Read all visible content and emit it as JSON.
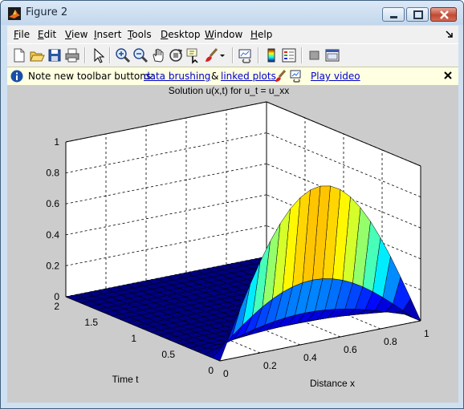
{
  "window": {
    "title": "Figure 2"
  },
  "menubar": {
    "items": [
      {
        "key": "F",
        "rest": "ile"
      },
      {
        "key": "E",
        "rest": "dit"
      },
      {
        "key": "V",
        "rest": "iew"
      },
      {
        "key": "I",
        "rest": "nsert"
      },
      {
        "key": "T",
        "rest": "ools"
      },
      {
        "key": "D",
        "rest": "esktop"
      },
      {
        "key": "W",
        "rest": "indow"
      },
      {
        "key": "H",
        "rest": "elp"
      }
    ]
  },
  "toolbar": {
    "icons": [
      "new-figure-icon",
      "open-file-icon",
      "save-icon",
      "print-icon",
      "edit-plot-icon",
      "zoom-in-icon",
      "zoom-out-icon",
      "pan-icon",
      "rotate-3d-icon",
      "data-cursor-icon",
      "brush-icon",
      "dropdown-arrow-icon",
      "link-plot-icon",
      "colorbar-icon",
      "legend-icon",
      "hide-plot-tools-icon",
      "show-plot-tools-icon"
    ]
  },
  "infobar": {
    "message": "Note new toolbar buttons:",
    "link_brushing": "data brushing",
    "amp": "&",
    "link_linked": "linked plots",
    "link_video": "Play video"
  },
  "plot": {
    "title": "Solution u(x,t) for u_t = u_xx",
    "x_label": "Distance x",
    "y_label": "Time t",
    "x_ticks": [
      "0",
      "0.2",
      "0.4",
      "0.6",
      "0.8",
      "1"
    ],
    "y_ticks": [
      "0",
      "0.5",
      "1",
      "1.5",
      "2"
    ],
    "z_ticks": [
      "0",
      "0.2",
      "0.4",
      "0.6",
      "0.8",
      "1"
    ]
  },
  "chart_data": {
    "type": "surface",
    "title": "Solution u(x,t) for u_t = u_xx",
    "xlabel": "Distance x",
    "ylabel": "Time t",
    "xlim": [
      0,
      1
    ],
    "ylim": [
      0,
      2
    ],
    "zlim": [
      0,
      1
    ],
    "x": [
      0,
      0.05,
      0.1,
      0.15,
      0.2,
      0.25,
      0.3,
      0.35,
      0.4,
      0.45,
      0.5,
      0.55,
      0.6,
      0.65,
      0.7,
      0.75,
      0.8,
      0.85,
      0.9,
      0.95,
      1
    ],
    "t": [
      0,
      0.1,
      0.2,
      0.3,
      0.4,
      0.5,
      0.6,
      0.7,
      0.8,
      0.9,
      1,
      1.1,
      1.2,
      1.3,
      1.4,
      1.5,
      1.6,
      1.7,
      1.8,
      1.9,
      2
    ],
    "grid": true,
    "colormap": "jet"
  }
}
